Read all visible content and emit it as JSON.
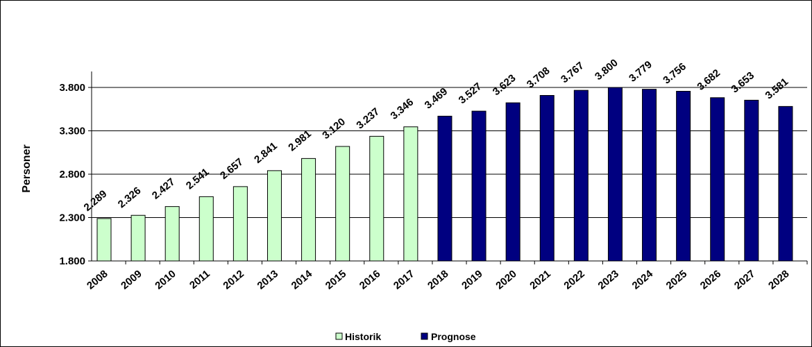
{
  "chart_data": {
    "type": "bar",
    "categories": [
      "2008",
      "2009",
      "2010",
      "2011",
      "2012",
      "2013",
      "2014",
      "2015",
      "2016",
      "2017",
      "2018",
      "2019",
      "2020",
      "2021",
      "2022",
      "2023",
      "2024",
      "2025",
      "2026",
      "2027",
      "2028"
    ],
    "series": [
      {
        "name": "Historik",
        "color": "#ccffcc",
        "values": [
          2289,
          2326,
          2427,
          2541,
          2657,
          2841,
          2981,
          3120,
          3237,
          3346,
          null,
          null,
          null,
          null,
          null,
          null,
          null,
          null,
          null,
          null,
          null
        ]
      },
      {
        "name": "Prognose",
        "color": "#000080",
        "values": [
          null,
          null,
          null,
          null,
          null,
          null,
          null,
          null,
          null,
          null,
          3469,
          3527,
          3623,
          3708,
          3767,
          3800,
          3779,
          3756,
          3682,
          3653,
          3581
        ]
      }
    ],
    "data_labels": [
      "2.289",
      "2.326",
      "2.427",
      "2.541",
      "2.657",
      "2.841",
      "2.981",
      "3.120",
      "3.237",
      "3.346",
      "3.469",
      "3.527",
      "3.623",
      "3.708",
      "3.767",
      "3.800",
      "3.779",
      "3.756",
      "3.682",
      "3.653",
      "3.581"
    ],
    "ylabel": "Personer",
    "xlabel": "",
    "ylim": [
      1800,
      3800
    ],
    "yticks": [
      1800,
      2300,
      2800,
      3300,
      3800
    ],
    "ytick_labels": [
      "1.800",
      "2.300",
      "2.800",
      "3.300",
      "3.800"
    ],
    "grid": true,
    "legend_position": "bottom"
  }
}
